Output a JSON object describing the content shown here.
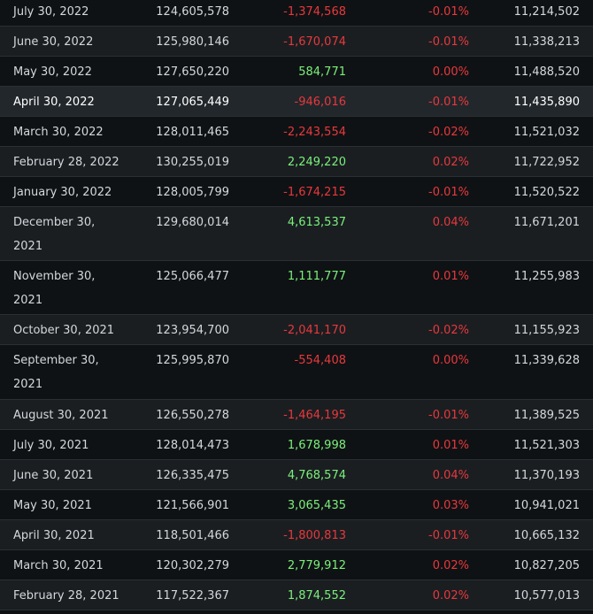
{
  "rows": [
    {
      "date": "July 30, 2022",
      "shares": "124,605,578",
      "change": "-1,374,568",
      "change_sign": "neg",
      "pct": "-0.01%",
      "pct_sign": "neg",
      "value": "11,214,502"
    },
    {
      "date": "June 30, 2022",
      "shares": "125,980,146",
      "change": "-1,670,074",
      "change_sign": "neg",
      "pct": "-0.01%",
      "pct_sign": "neg",
      "value": "11,338,213"
    },
    {
      "date": "May 30, 2022",
      "shares": "127,650,220",
      "change": "584,771",
      "change_sign": "pos",
      "pct": "0.00%",
      "pct_sign": "neg",
      "value": "11,488,520"
    },
    {
      "date": "April 30, 2022",
      "shares": "127,065,449",
      "change": "-946,016",
      "change_sign": "neg",
      "pct": "-0.01%",
      "pct_sign": "neg",
      "value": "11,435,890"
    },
    {
      "date": "March 30, 2022",
      "shares": "128,011,465",
      "change": "-2,243,554",
      "change_sign": "neg",
      "pct": "-0.02%",
      "pct_sign": "neg",
      "value": "11,521,032"
    },
    {
      "date": "February 28, 2022",
      "shares": "130,255,019",
      "change": "2,249,220",
      "change_sign": "pos",
      "pct": "0.02%",
      "pct_sign": "neg",
      "value": "11,722,952"
    },
    {
      "date": "January 30, 2022",
      "shares": "128,005,799",
      "change": "-1,674,215",
      "change_sign": "neg",
      "pct": "-0.01%",
      "pct_sign": "neg",
      "value": "11,520,522"
    },
    {
      "date": "December 30, 2021",
      "shares": "129,680,014",
      "change": "4,613,537",
      "change_sign": "pos",
      "pct": "0.04%",
      "pct_sign": "neg",
      "value": "11,671,201"
    },
    {
      "date": "November 30, 2021",
      "shares": "125,066,477",
      "change": "1,111,777",
      "change_sign": "pos",
      "pct": "0.01%",
      "pct_sign": "neg",
      "value": "11,255,983"
    },
    {
      "date": "October 30, 2021",
      "shares": "123,954,700",
      "change": "-2,041,170",
      "change_sign": "neg",
      "pct": "-0.02%",
      "pct_sign": "neg",
      "value": "11,155,923"
    },
    {
      "date": "September 30, 2021",
      "shares": "125,995,870",
      "change": "-554,408",
      "change_sign": "neg",
      "pct": "0.00%",
      "pct_sign": "neg",
      "value": "11,339,628"
    },
    {
      "date": "August 30, 2021",
      "shares": "126,550,278",
      "change": "-1,464,195",
      "change_sign": "neg",
      "pct": "-0.01%",
      "pct_sign": "neg",
      "value": "11,389,525"
    },
    {
      "date": "July 30, 2021",
      "shares": "128,014,473",
      "change": "1,678,998",
      "change_sign": "pos",
      "pct": "0.01%",
      "pct_sign": "neg",
      "value": "11,521,303"
    },
    {
      "date": "June 30, 2021",
      "shares": "126,335,475",
      "change": "4,768,574",
      "change_sign": "pos",
      "pct": "0.04%",
      "pct_sign": "neg",
      "value": "11,370,193"
    },
    {
      "date": "May 30, 2021",
      "shares": "121,566,901",
      "change": "3,065,435",
      "change_sign": "pos",
      "pct": "0.03%",
      "pct_sign": "neg",
      "value": "10,941,021"
    },
    {
      "date": "April 30, 2021",
      "shares": "118,501,466",
      "change": "-1,800,813",
      "change_sign": "neg",
      "pct": "-0.01%",
      "pct_sign": "neg",
      "value": "10,665,132"
    },
    {
      "date": "March 30, 2021",
      "shares": "120,302,279",
      "change": "2,779,912",
      "change_sign": "pos",
      "pct": "0.02%",
      "pct_sign": "neg",
      "value": "10,827,205"
    },
    {
      "date": "February 28, 2021",
      "shares": "117,522,367",
      "change": "1,874,552",
      "change_sign": "pos",
      "pct": "0.02%",
      "pct_sign": "neg",
      "value": "10,577,013"
    }
  ],
  "highlight_index": 3,
  "colors": {
    "negative": "#e8383d",
    "positive": "#7bf07b",
    "row_odd": "#0f1214",
    "row_even": "#1a1e21",
    "row_highlight": "#22272b"
  }
}
